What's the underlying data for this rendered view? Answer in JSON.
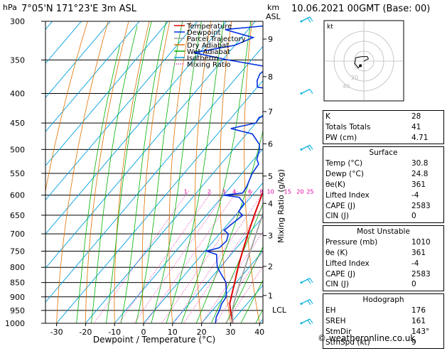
{
  "header": {
    "location": "7°05'N  171°23'E  3m  ASL",
    "datetime": "10.06.2021  00GMT  (Base: 00)"
  },
  "credit": "© weatheronline.co.uk",
  "colors": {
    "temperature": "#e00000",
    "dewpoint": "#0030e0",
    "parcel": "#a0a0a0",
    "dry_adiabat": "#e07000",
    "wet_adiabat": "#00b000",
    "isotherm": "#00a0e0",
    "mixing_ratio": "#e000a0",
    "wind": "#00b0e0"
  },
  "chart_data": {
    "type": "line",
    "title": "",
    "xlabel": "Dewpoint / Temperature (°C)",
    "ylabel": "hPa",
    "y2label": "km ASL",
    "mixing_label": "Mixing Ratio (g/kg)",
    "xlim": [
      -35,
      40
    ],
    "ylim": [
      1000,
      300
    ],
    "pressure_ticks": [
      300,
      350,
      400,
      450,
      500,
      550,
      600,
      650,
      700,
      750,
      800,
      850,
      900,
      950,
      1000
    ],
    "temp_ticks": [
      -30,
      -20,
      -10,
      0,
      10,
      20,
      30,
      40
    ],
    "km_ticks": [
      {
        "km": "1",
        "p": 895
      },
      {
        "km": "2",
        "p": 797
      },
      {
        "km": "3",
        "p": 705
      },
      {
        "km": "4",
        "p": 620
      },
      {
        "km": "5",
        "p": 556
      },
      {
        "km": "6",
        "p": 489
      },
      {
        "km": "7",
        "p": 430
      },
      {
        "km": "8",
        "p": 374
      },
      {
        "km": "9",
        "p": 322
      }
    ],
    "lcl_label": "LCL",
    "lcl_p": 918,
    "mixing_ratio_labels": [
      "1",
      "2",
      "3",
      "4",
      "6",
      "8",
      "10",
      "15",
      "20",
      "25"
    ],
    "mixing_ratio_values": [
      1,
      2,
      3,
      4,
      6,
      8,
      10,
      15,
      20,
      25
    ],
    "legend": [
      "Temperature",
      "Dewpoint",
      "Parcel Trajectory",
      "Dry Adiabat",
      "Wet Adiabat",
      "Isotherm",
      "Mixing Ratio"
    ],
    "series": [
      {
        "name": "Temperature",
        "points": [
          [
            1000,
            30.8
          ],
          [
            975,
            28.5
          ],
          [
            950,
            26.2
          ],
          [
            925,
            24.0
          ],
          [
            900,
            22.5
          ],
          [
            850,
            19.5
          ],
          [
            800,
            16.2
          ],
          [
            750,
            13.0
          ],
          [
            700,
            9.8
          ],
          [
            650,
            6.5
          ],
          [
            600,
            3.2
          ],
          [
            550,
            -0.6
          ],
          [
            500,
            -4.8
          ],
          [
            450,
            -9.8
          ],
          [
            400,
            -15.8
          ],
          [
            370,
            -19.5
          ],
          [
            350,
            -22.0
          ],
          [
            300,
            -30.0
          ]
        ]
      },
      {
        "name": "Dewpoint",
        "points": [
          [
            1000,
            24.8
          ],
          [
            975,
            23.2
          ],
          [
            950,
            22.4
          ],
          [
            925,
            21.2
          ],
          [
            900,
            20.8
          ],
          [
            850,
            16.5
          ],
          [
            800,
            9.0
          ],
          [
            760,
            5.0
          ],
          [
            750,
            0.5
          ],
          [
            740,
            4.0
          ],
          [
            720,
            4.5
          ],
          [
            700,
            3.0
          ],
          [
            690,
            0.5
          ],
          [
            650,
            2.5
          ],
          [
            640,
            0.0
          ],
          [
            620,
            -0.5
          ],
          [
            605,
            -4.0
          ],
          [
            600,
            -10.0
          ],
          [
            595,
            -4.0
          ],
          [
            580,
            -4.5
          ],
          [
            550,
            -6.5
          ],
          [
            530,
            -7.0
          ],
          [
            520,
            -9.0
          ],
          [
            500,
            -11.0
          ],
          [
            490,
            -12.5
          ],
          [
            470,
            -18.0
          ],
          [
            460,
            -27.0
          ],
          [
            450,
            -20.0
          ],
          [
            440,
            -20.5
          ],
          [
            430,
            -15.0
          ],
          [
            420,
            -14.5
          ],
          [
            415,
            -13.0
          ],
          [
            405,
            -14.5
          ],
          [
            398,
            -17.0
          ],
          [
            390,
            -30.0
          ],
          [
            380,
            -32.0
          ],
          [
            370,
            -33.0
          ],
          [
            360,
            -32.0
          ],
          [
            350,
            -48.0
          ],
          [
            340,
            -62.0
          ],
          [
            330,
            -50.0
          ],
          [
            320,
            -46.0
          ],
          [
            310,
            -58.0
          ],
          [
            305,
            -44.0
          ],
          [
            300,
            -44.0
          ]
        ]
      },
      {
        "name": "Parcel Trajectory",
        "points": [
          [
            1000,
            30.8
          ],
          [
            950,
            26.8
          ],
          [
            918,
            25.0
          ],
          [
            850,
            21.3
          ],
          [
            800,
            18.6
          ],
          [
            700,
            12.6
          ],
          [
            600,
            5.8
          ],
          [
            500,
            -2.5
          ],
          [
            400,
            -12.5
          ],
          [
            350,
            -19.0
          ],
          [
            300,
            -26.5
          ]
        ]
      }
    ],
    "winds": [
      {
        "p": 1000,
        "dir": 143,
        "kt": 9
      },
      {
        "p": 925,
        "dir": 120,
        "kt": 12
      },
      {
        "p": 850,
        "dir": 110,
        "kt": 10
      },
      {
        "p": 500,
        "dir": 80,
        "kt": 8
      },
      {
        "p": 400,
        "dir": 260,
        "kt": 6
      },
      {
        "p": 300,
        "dir": 250,
        "kt": 8
      }
    ],
    "hodograph": {
      "label": "kt",
      "ring_labels": [
        "20",
        "40"
      ],
      "points": [
        [
          0,
          0
        ],
        [
          2,
          1
        ],
        [
          4,
          2
        ],
        [
          3,
          4
        ],
        [
          -2,
          4
        ],
        [
          -7,
          3
        ],
        [
          -8,
          -2
        ],
        [
          -5,
          -6
        ],
        [
          -3,
          -4
        ]
      ]
    }
  },
  "panel": {
    "indices": [
      {
        "label": "K",
        "value": "28"
      },
      {
        "label": "Totals Totals",
        "value": "41"
      },
      {
        "label": "PW (cm)",
        "value": "4.71"
      }
    ],
    "surface": {
      "title": "Surface",
      "rows": [
        {
          "label": "Temp (°C)",
          "value": "30.8"
        },
        {
          "label": "Dewp (°C)",
          "value": "24.8"
        },
        {
          "label": "θe(K)",
          "value": "361"
        },
        {
          "label": "Lifted Index",
          "value": "-4"
        },
        {
          "label": "CAPE (J)",
          "value": "2583"
        },
        {
          "label": "CIN (J)",
          "value": "0"
        }
      ]
    },
    "unstable": {
      "title": "Most Unstable",
      "rows": [
        {
          "label": "Pressure (mb)",
          "value": "1010"
        },
        {
          "label": "θe (K)",
          "value": "361"
        },
        {
          "label": "Lifted Index",
          "value": "-4"
        },
        {
          "label": "CAPE (J)",
          "value": "2583"
        },
        {
          "label": "CIN (J)",
          "value": "0"
        }
      ]
    },
    "hodograph": {
      "title": "Hodograph",
      "rows": [
        {
          "label": "EH",
          "value": "176"
        },
        {
          "label": "SREH",
          "value": "161"
        },
        {
          "label": "StmDir",
          "value": "143°"
        },
        {
          "label": "StmSpd (kt)",
          "value": "9"
        }
      ]
    }
  }
}
